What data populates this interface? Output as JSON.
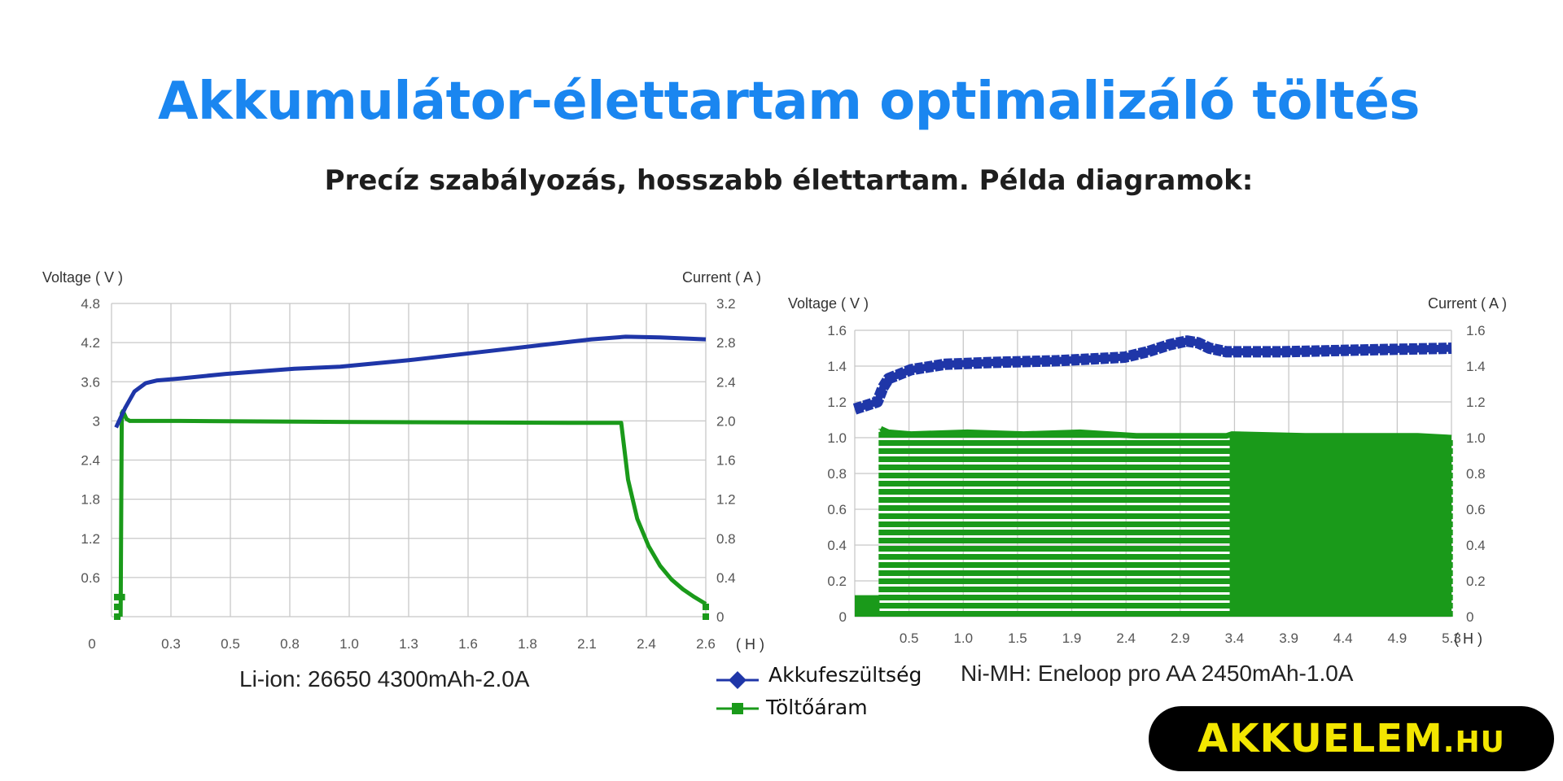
{
  "page": {
    "title": "Akkumulátor-élettartam optimalizáló töltés",
    "subtitle": "Precíz szabályozás, hosszabb élettartam. Példa diagramok:",
    "logo": {
      "main": "AKKUELEM",
      "suffix": ".HU"
    },
    "colors": {
      "title": "#1a86f0",
      "voltage": "#1f36a8",
      "current": "#1a9a1a",
      "logo_bg": "#000000",
      "logo_text": "#f2e600"
    }
  },
  "legend": [
    {
      "label": "Akkufeszültség",
      "color": "#1f36a8",
      "marker": "diamond"
    },
    {
      "label": "Töltőáram",
      "color": "#1a9a1a",
      "marker": "square"
    }
  ],
  "chart_data": [
    {
      "type": "line",
      "caption": "Li-ion: 26650 4300mAh-2.0A",
      "ylabel_left": "Voltage ( V )",
      "ylabel_right": "Current ( A )",
      "xunit": "( H )",
      "xlim": [
        0,
        2.6
      ],
      "ylim_left": [
        0,
        4.8
      ],
      "ylim_right": [
        0,
        3.2
      ],
      "x_ticks": [
        "0",
        "0.3",
        "0.5",
        "0.8",
        "1.0",
        "1.3",
        "1.6",
        "1.8",
        "2.1",
        "2.4",
        "2.6"
      ],
      "y_left_ticks": [
        "4.8",
        "4.2",
        "3.6",
        "3",
        "2.4",
        "1.8",
        "1.2",
        "0.6"
      ],
      "y_right_ticks": [
        "3.2",
        "2.8",
        "2.4",
        "2.0",
        "1.6",
        "1.2",
        "0.8",
        "0.4",
        "0"
      ],
      "series": [
        {
          "name": "Akkufeszültség",
          "axis": "left",
          "x": [
            0.02,
            0.06,
            0.1,
            0.15,
            0.2,
            0.3,
            0.5,
            0.8,
            1.0,
            1.3,
            1.6,
            1.9,
            2.1,
            2.25,
            2.4,
            2.6
          ],
          "y": [
            2.9,
            3.2,
            3.45,
            3.58,
            3.62,
            3.65,
            3.72,
            3.8,
            3.83,
            3.93,
            4.05,
            4.17,
            4.25,
            4.29,
            4.28,
            4.25
          ]
        },
        {
          "name": "Töltőáram",
          "axis": "right",
          "x": [
            0.04,
            0.045,
            0.05,
            0.065,
            0.08,
            0.1,
            0.3,
            1.0,
            2.0,
            2.23,
            2.26,
            2.3,
            2.35,
            2.4,
            2.45,
            2.5,
            2.55,
            2.6
          ],
          "y": [
            0.0,
            2.08,
            2.1,
            2.02,
            2.0,
            2.0,
            2.0,
            1.99,
            1.98,
            1.98,
            1.4,
            1.0,
            0.72,
            0.52,
            0.38,
            0.28,
            0.2,
            0.13
          ]
        }
      ]
    },
    {
      "type": "line",
      "caption": "Ni-MH: Eneloop pro AA 2450mAh-1.0A",
      "ylabel_left": "Voltage ( V )",
      "ylabel_right": "Current ( A )",
      "xunit": "( H )",
      "xlim": [
        0,
        5.3
      ],
      "ylim_left": [
        0,
        1.6
      ],
      "ylim_right": [
        0,
        1.6
      ],
      "x_ticks": [
        "0.5",
        "1.0",
        "1.5",
        "1.9",
        "2.4",
        "2.9",
        "3.4",
        "3.9",
        "4.4",
        "4.9",
        "5.3"
      ],
      "y_left_ticks": [
        "1.6",
        "1.4",
        "1.2",
        "1.0",
        "0.8",
        "0.6",
        "0.4",
        "0.2",
        "0"
      ],
      "y_right_ticks": [
        "1.6",
        "1.4",
        "1.2",
        "1.0",
        "0.8",
        "0.6",
        "0.4",
        "0.2",
        "0"
      ],
      "series": [
        {
          "name": "Akkufeszültség",
          "axis": "left",
          "x": [
            0.0,
            0.1,
            0.2,
            0.25,
            0.3,
            0.5,
            0.8,
            1.2,
            1.8,
            2.4,
            2.6,
            2.8,
            2.95,
            3.05,
            3.15,
            3.3,
            3.8,
            4.5,
            5.3
          ],
          "y": [
            1.16,
            1.18,
            1.2,
            1.28,
            1.33,
            1.38,
            1.41,
            1.42,
            1.43,
            1.45,
            1.48,
            1.52,
            1.54,
            1.53,
            1.5,
            1.48,
            1.48,
            1.49,
            1.5
          ]
        },
        {
          "name": "Töltőáram",
          "axis": "right",
          "pulsed": true,
          "x": [
            0.0,
            0.22,
            0.23,
            0.3,
            0.5,
            1.0,
            1.5,
            2.0,
            2.5,
            3.0,
            3.3,
            3.35,
            4.0,
            4.5,
            5.0,
            5.3
          ],
          "y_peak": [
            0.12,
            0.12,
            1.05,
            1.03,
            1.02,
            1.03,
            1.02,
            1.03,
            1.01,
            1.01,
            1.01,
            1.02,
            1.01,
            1.01,
            1.01,
            1.0
          ],
          "y_base": [
            0.0,
            0.0,
            0.0,
            0.0,
            0.0,
            0.0,
            0.0,
            0.0,
            0.0,
            0.0,
            0.0,
            0.0,
            0.0,
            0.0,
            0.0,
            0.0
          ]
        }
      ]
    }
  ]
}
